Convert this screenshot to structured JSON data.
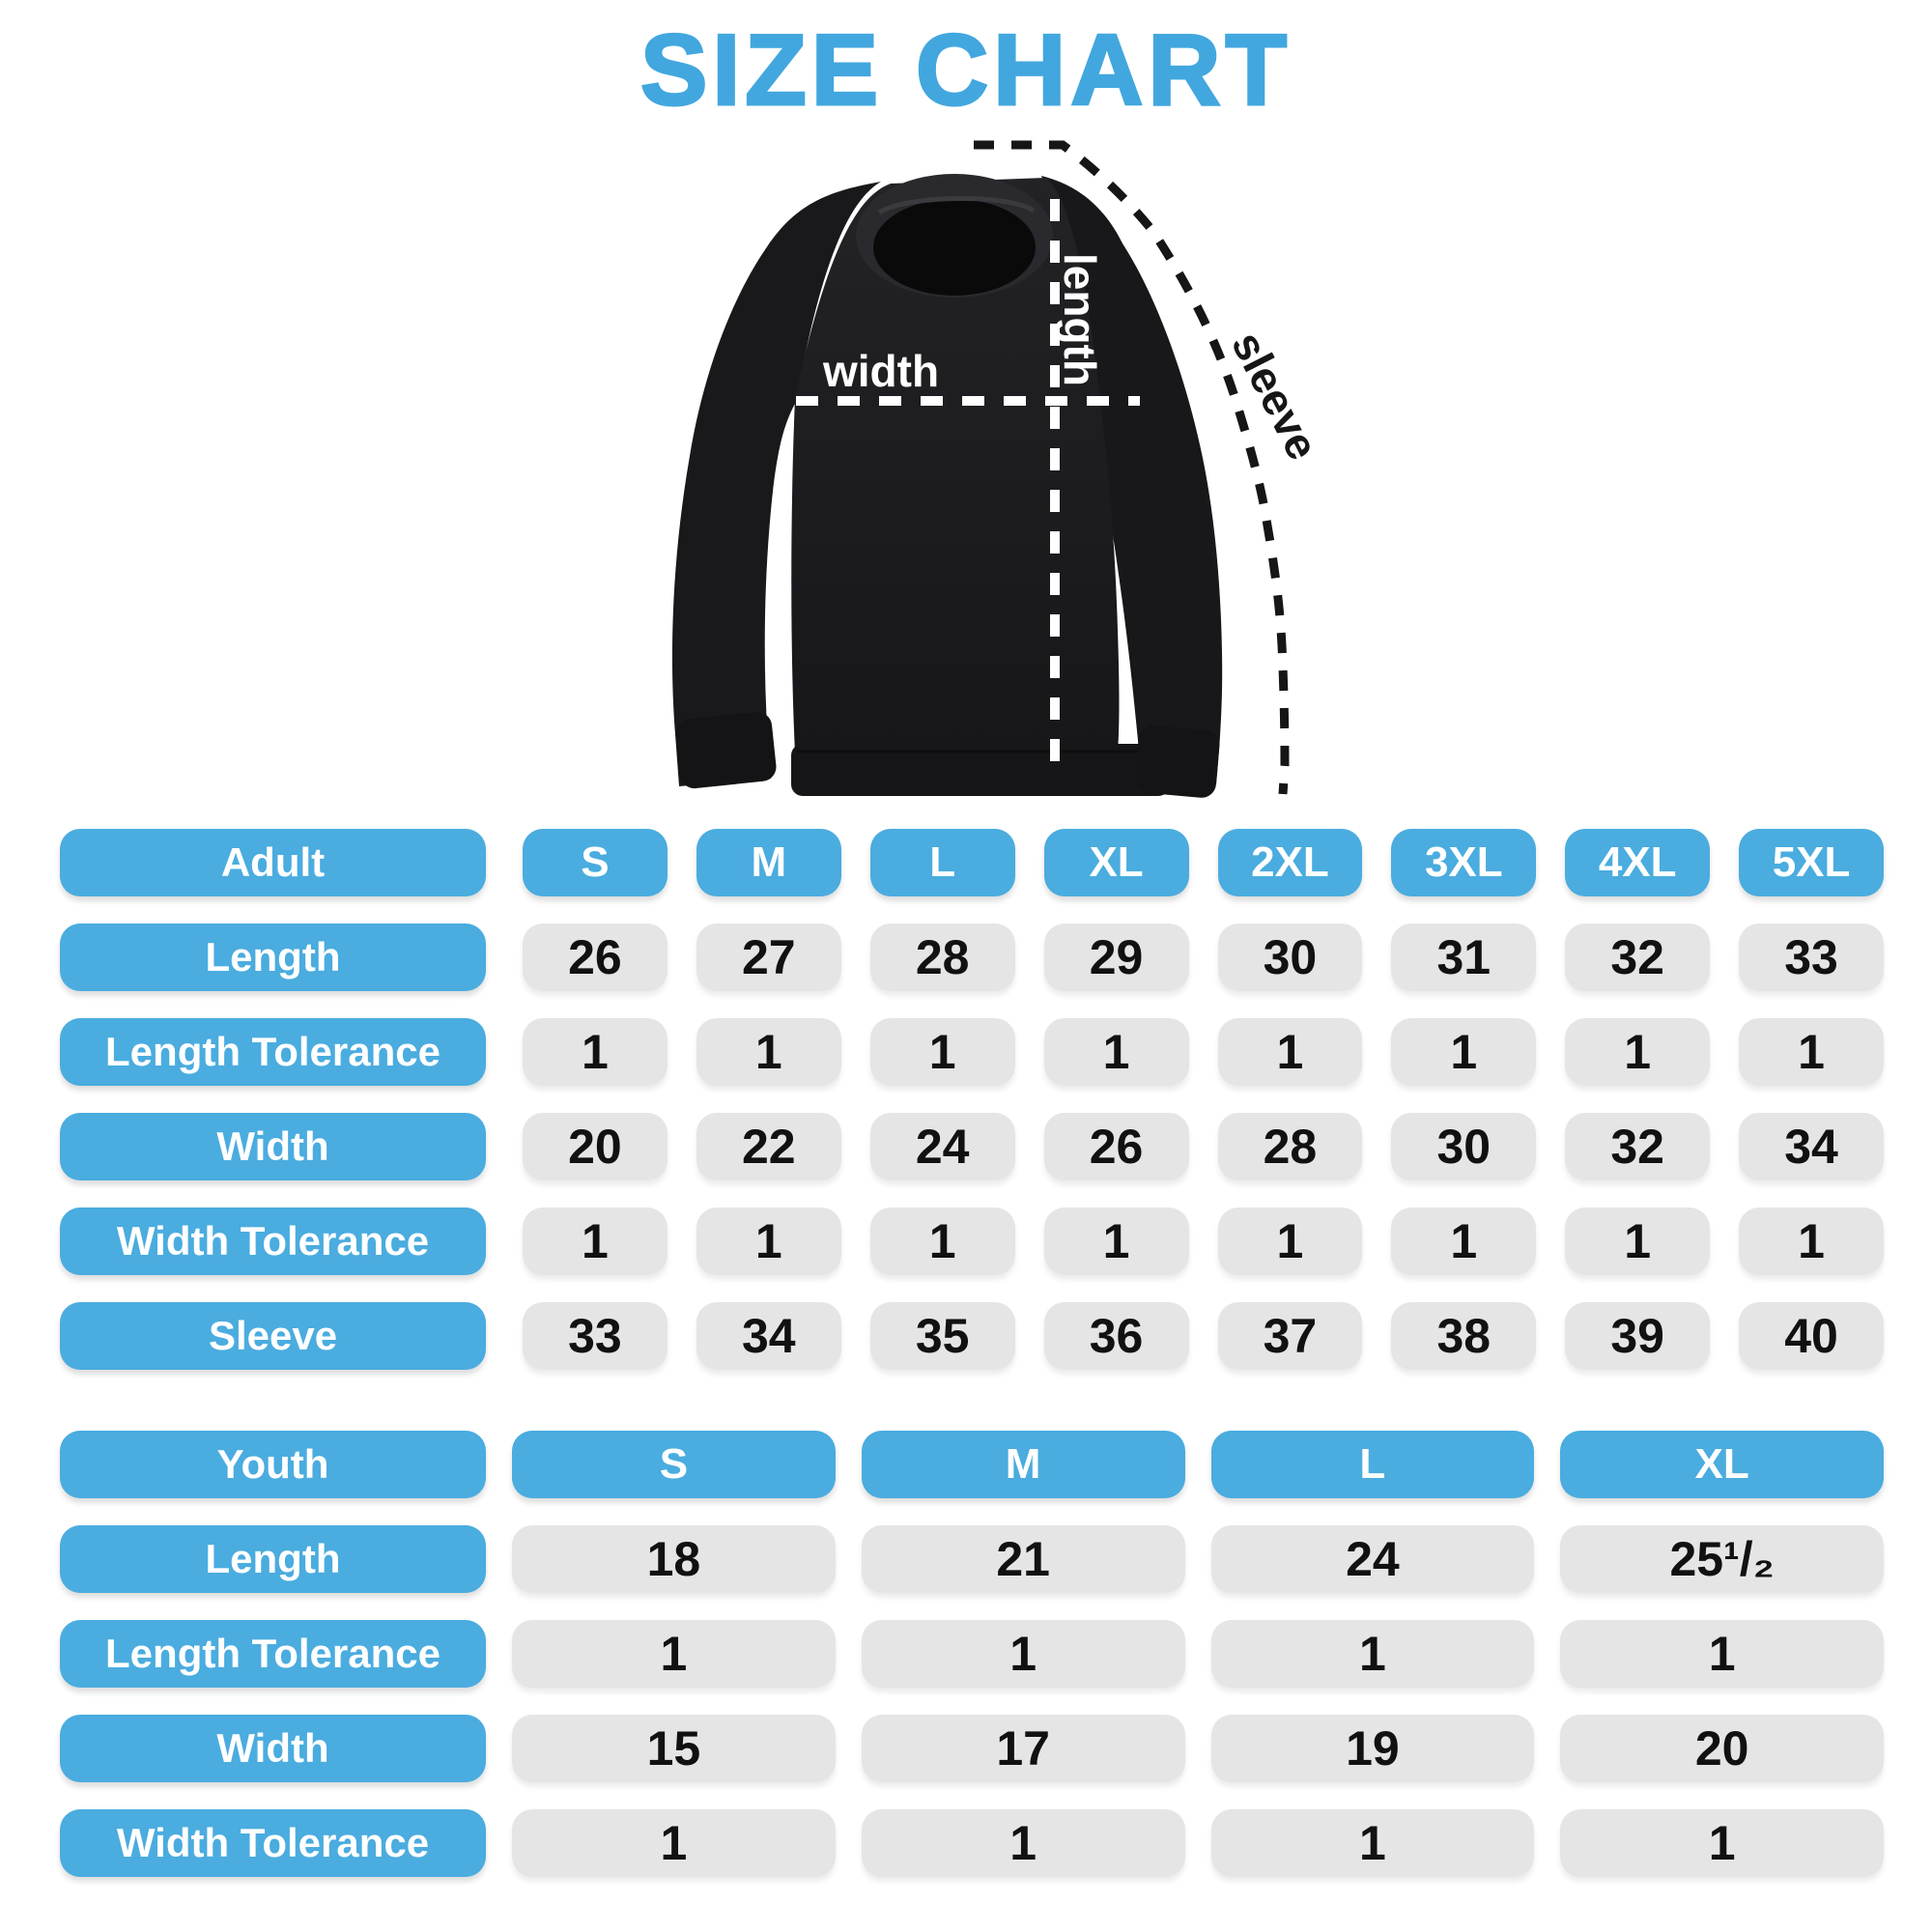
{
  "title": "SIZE CHART",
  "colors": {
    "accent_blue": "#4AACDF",
    "title_blue": "#42A7DE",
    "cell_grey": "#E5E5E6",
    "value_text": "#111111",
    "shirt_black": "#1a1a1c"
  },
  "diagram": {
    "shirt": "black crewneck sweatshirt",
    "labels": {
      "length": "length",
      "width": "width",
      "sleeve": "sleeve"
    }
  },
  "adult_table": {
    "header": {
      "label": "Adult",
      "sizes": [
        "S",
        "M",
        "L",
        "XL",
        "2XL",
        "3XL",
        "4XL",
        "5XL"
      ]
    },
    "rows": [
      {
        "label": "Length",
        "values": [
          "26",
          "27",
          "28",
          "29",
          "30",
          "31",
          "32",
          "33"
        ]
      },
      {
        "label": "Length Tolerance",
        "values": [
          "1",
          "1",
          "1",
          "1",
          "1",
          "1",
          "1",
          "1"
        ]
      },
      {
        "label": "Width",
        "values": [
          "20",
          "22",
          "24",
          "26",
          "28",
          "30",
          "32",
          "34"
        ]
      },
      {
        "label": "Width Tolerance",
        "values": [
          "1",
          "1",
          "1",
          "1",
          "1",
          "1",
          "1",
          "1"
        ]
      },
      {
        "label": "Sleeve",
        "values": [
          "33",
          "34",
          "35",
          "36",
          "37",
          "38",
          "39",
          "40"
        ]
      }
    ]
  },
  "youth_table": {
    "header": {
      "label": "Youth",
      "sizes": [
        "S",
        "M",
        "L",
        "XL"
      ]
    },
    "rows": [
      {
        "label": "Length",
        "values": [
          "18",
          "21",
          "24",
          "25¹/₂"
        ]
      },
      {
        "label": "Length Tolerance",
        "values": [
          "1",
          "1",
          "1",
          "1"
        ]
      },
      {
        "label": "Width",
        "values": [
          "15",
          "17",
          "19",
          "20"
        ]
      },
      {
        "label": "Width Tolerance",
        "values": [
          "1",
          "1",
          "1",
          "1"
        ]
      }
    ]
  },
  "chart_data": [
    {
      "type": "table",
      "title": "Adult",
      "columns": [
        "S",
        "M",
        "L",
        "XL",
        "2XL",
        "3XL",
        "4XL",
        "5XL"
      ],
      "rows": [
        {
          "label": "Length",
          "values": [
            26,
            27,
            28,
            29,
            30,
            31,
            32,
            33
          ]
        },
        {
          "label": "Length Tolerance",
          "values": [
            1,
            1,
            1,
            1,
            1,
            1,
            1,
            1
          ]
        },
        {
          "label": "Width",
          "values": [
            20,
            22,
            24,
            26,
            28,
            30,
            32,
            34
          ]
        },
        {
          "label": "Width Tolerance",
          "values": [
            1,
            1,
            1,
            1,
            1,
            1,
            1,
            1
          ]
        },
        {
          "label": "Sleeve",
          "values": [
            33,
            34,
            35,
            36,
            37,
            38,
            39,
            40
          ]
        }
      ]
    },
    {
      "type": "table",
      "title": "Youth",
      "columns": [
        "S",
        "M",
        "L",
        "XL"
      ],
      "rows": [
        {
          "label": "Length",
          "values": [
            18,
            21,
            24,
            25.5
          ]
        },
        {
          "label": "Length Tolerance",
          "values": [
            1,
            1,
            1,
            1
          ]
        },
        {
          "label": "Width",
          "values": [
            15,
            17,
            19,
            20
          ]
        },
        {
          "label": "Width Tolerance",
          "values": [
            1,
            1,
            1,
            1
          ]
        }
      ]
    }
  ]
}
